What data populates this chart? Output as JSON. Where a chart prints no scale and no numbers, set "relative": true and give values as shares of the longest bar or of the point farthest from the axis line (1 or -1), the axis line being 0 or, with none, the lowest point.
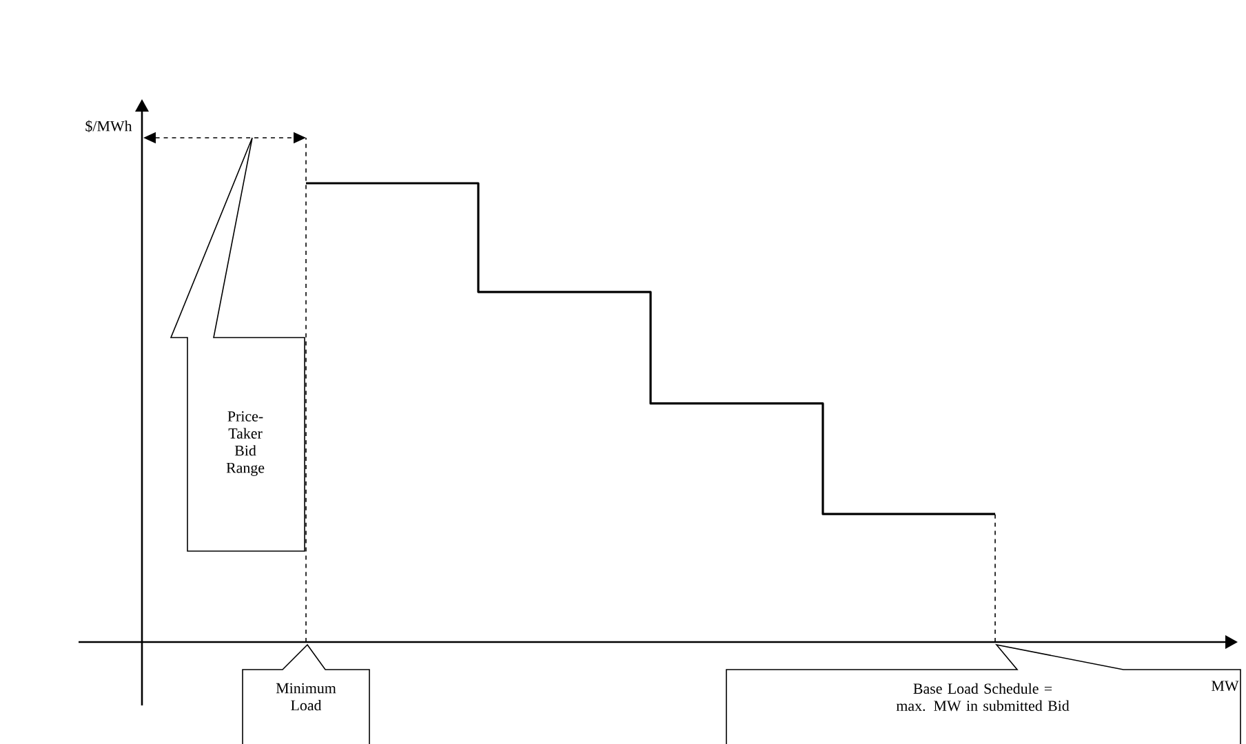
{
  "chart_data": {
    "type": "step",
    "relative": true,
    "categories": [
      null,
      null,
      null,
      null,
      null
    ],
    "series": [
      {
        "color": "#000000",
        "values": [
          1,
          0.763,
          0.52,
          0.279,
          0.279
        ]
      }
    ],
    "annotations": [
      "$/MWh",
      "MW",
      "Price-Taker Bid Range",
      "Minimum Load",
      "Base Load Schedule = max. MW in submitted Bid"
    ]
  }
}
